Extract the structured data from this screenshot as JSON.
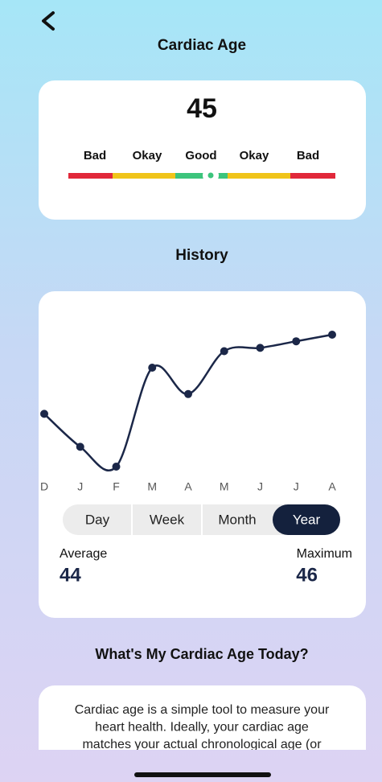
{
  "header": {
    "title": "Cardiac Age"
  },
  "score": {
    "value": 45,
    "labels": [
      "Bad",
      "Okay",
      "Good",
      "Okay",
      "Bad"
    ]
  },
  "history": {
    "title": "History"
  },
  "chart_data": {
    "type": "line",
    "categories": [
      "D",
      "J",
      "F",
      "M",
      "A",
      "M",
      "J",
      "J",
      "A"
    ],
    "series": [
      {
        "color": "#1b2748",
        "values": [
          43.6,
          42.6,
          42,
          45,
          44.2,
          45.5,
          45.6,
          45.8,
          46
        ]
      }
    ],
    "ylim": [
      41,
      47
    ]
  },
  "tabs": [
    "Day",
    "Week",
    "Month",
    "Year"
  ],
  "selected_tab": 3,
  "stats": {
    "average_label": "Average",
    "average": 44,
    "maximum_label": "Maximum",
    "maximum": 46
  },
  "info": {
    "title": "What's My Cardiac Age Today?",
    "lines": [
      "Cardiac age is a simple tool to measure your",
      "heart health. Ideally, your cardiac age",
      "matches your actual chronological age (or"
    ]
  }
}
